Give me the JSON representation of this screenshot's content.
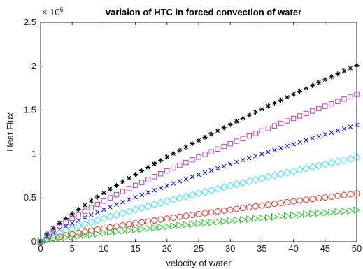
{
  "chart_data": {
    "type": "scatter",
    "title": "variaion of HTC in forced convection of water",
    "xlabel": "velocity of  water",
    "ylabel": "Heat Flux",
    "exponent_label": "× 10",
    "exponent_power": "5",
    "xlim": [
      0,
      50
    ],
    "ylim": [
      0,
      250000
    ],
    "xticks": [
      0,
      5,
      10,
      15,
      20,
      25,
      30,
      35,
      40,
      45,
      50
    ],
    "yticks": [
      0,
      50000,
      100000,
      150000,
      200000,
      250000
    ],
    "ytick_labels": [
      "0",
      "0.5",
      "1",
      "1.5",
      "2",
      "2.5"
    ],
    "grid": false,
    "box": true,
    "x_start": 0,
    "x_step": 1,
    "x_end": 50,
    "series": [
      {
        "marker": "asterisk",
        "color": "#000000",
        "y_end": 201000,
        "curvature": 0.8
      },
      {
        "marker": "square",
        "color": "#bf40bf",
        "y_end": 168000,
        "curvature": 0.8
      },
      {
        "marker": "x",
        "color": "#0000ff",
        "y_end": 133000,
        "curvature": 0.8
      },
      {
        "marker": "diamond",
        "color": "#40e0f0",
        "y_end": 96000,
        "curvature": 0.8
      },
      {
        "marker": "circle",
        "color": "#e03030",
        "y_end": 55000,
        "curvature": 0.8
      },
      {
        "marker": "triangle-right",
        "color": "#30c030",
        "y_end": 36000,
        "curvature": 0.8
      }
    ]
  }
}
